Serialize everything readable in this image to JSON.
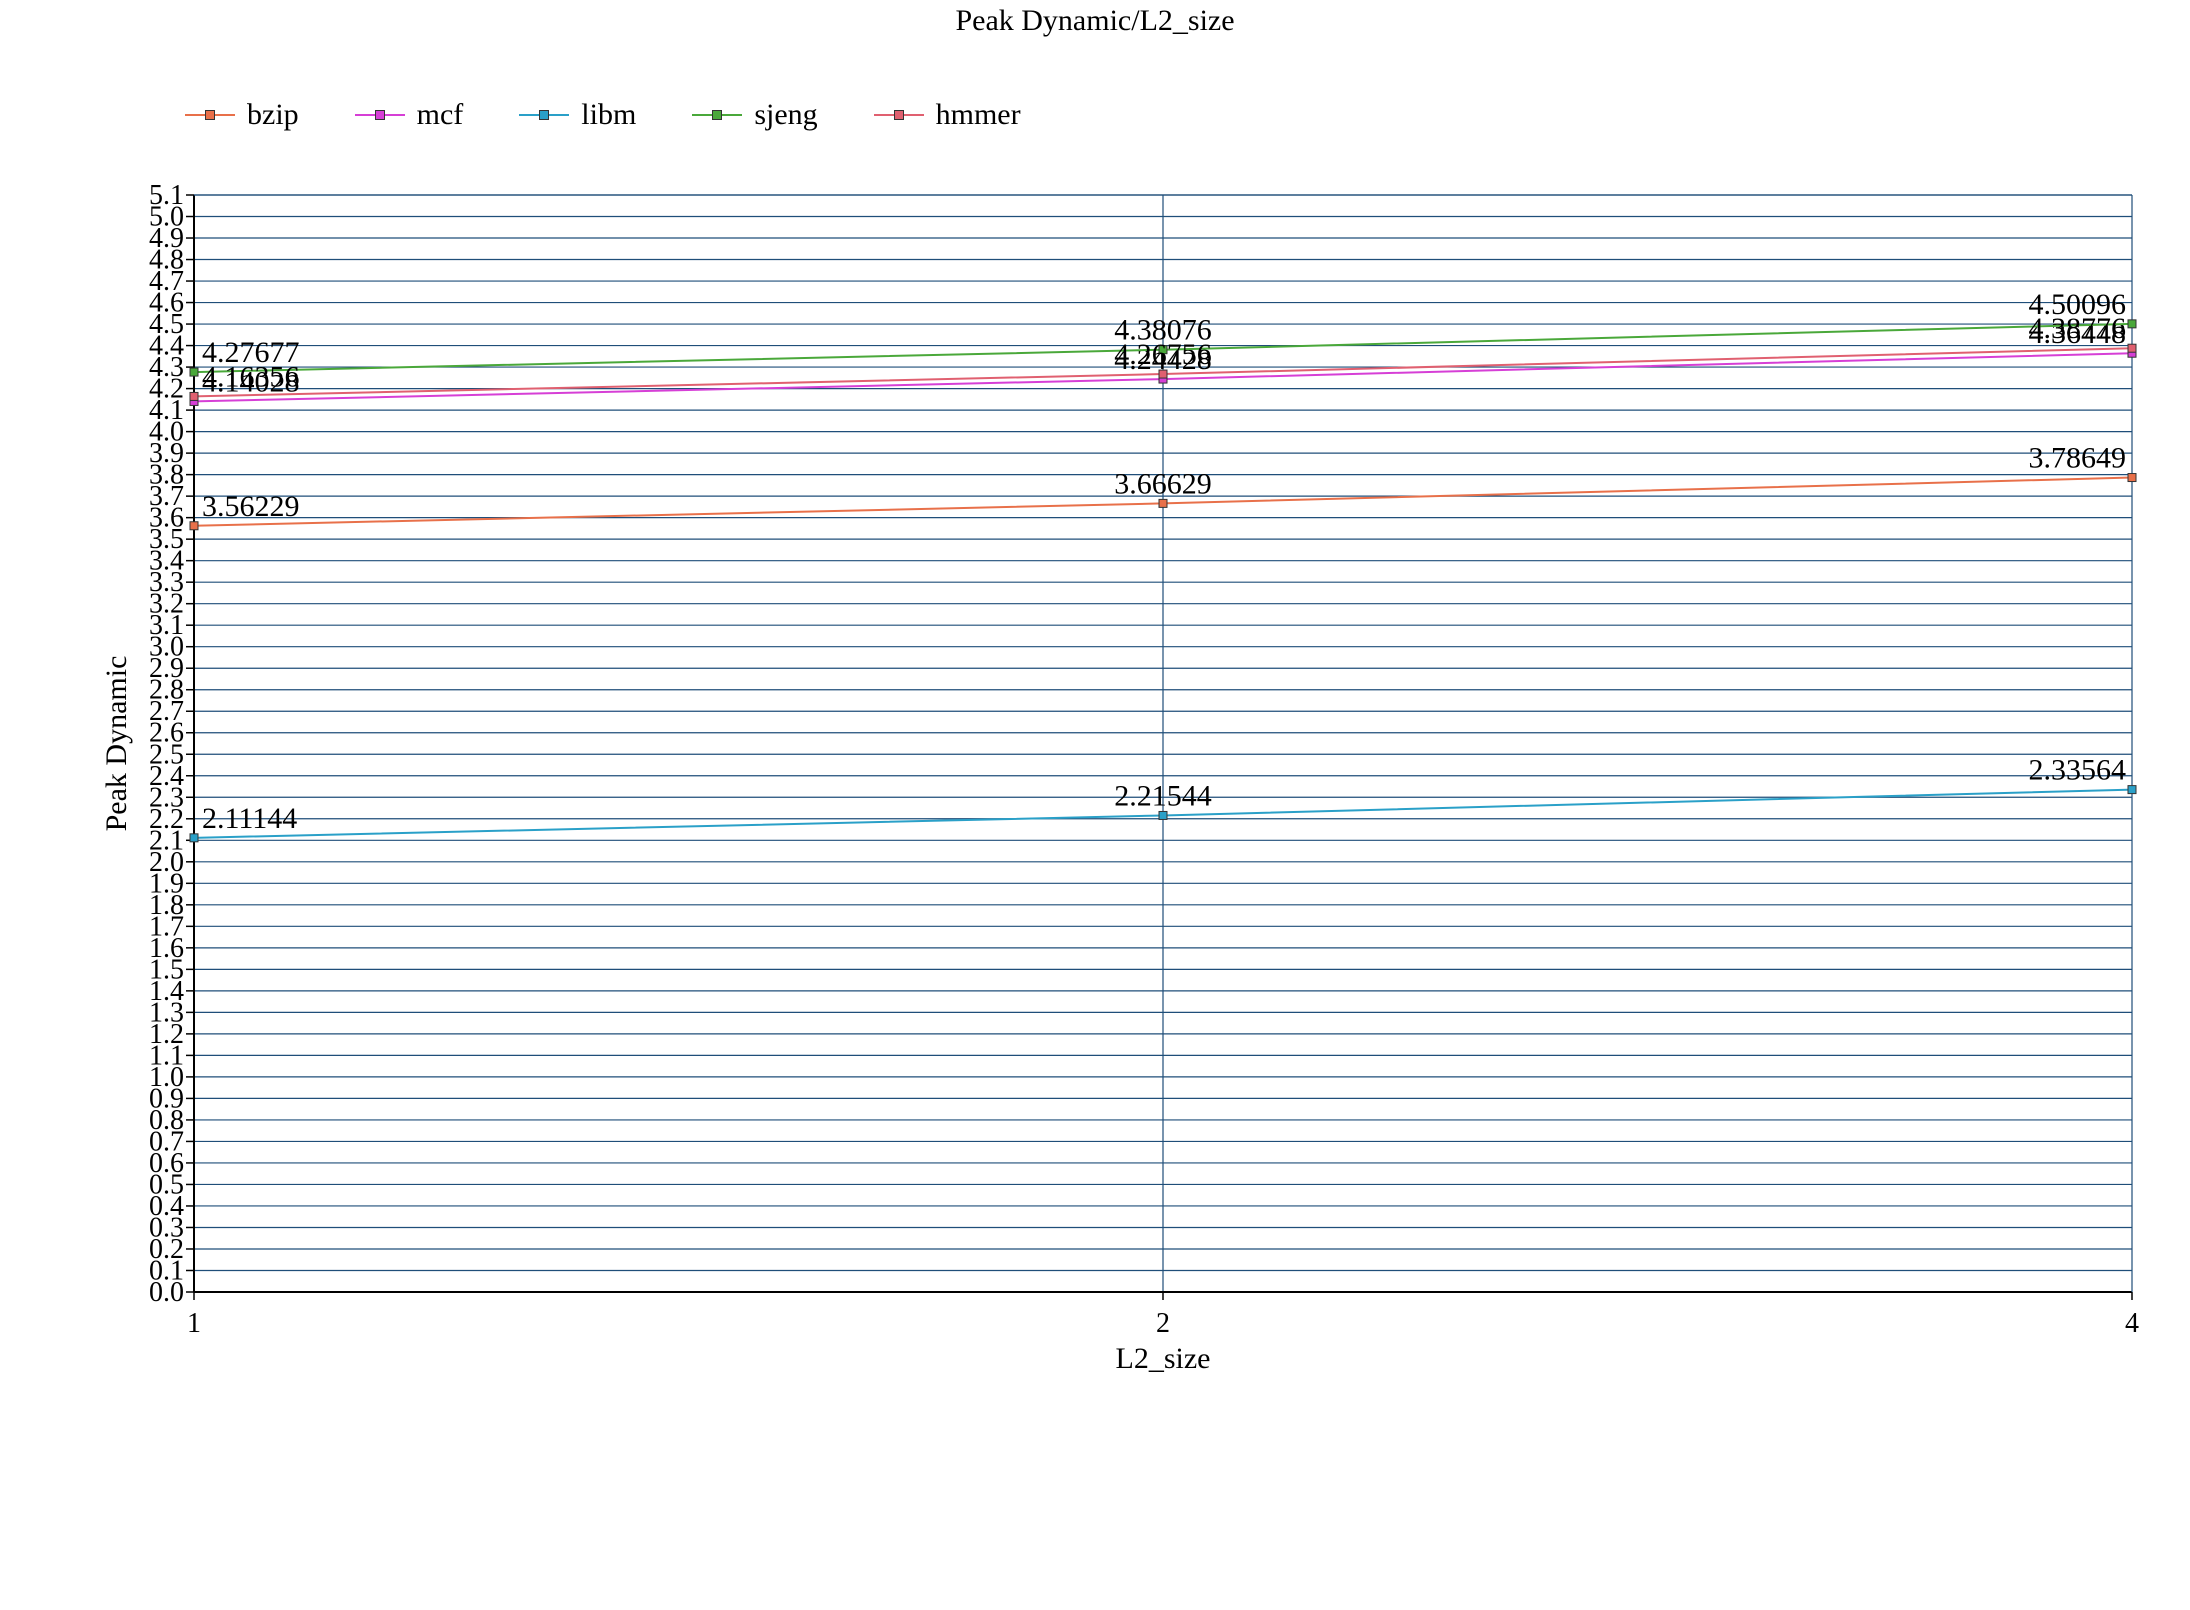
{
  "chart_data": {
    "type": "line",
    "title": "Peak Dynamic/L2_size",
    "xlabel": "L2_size",
    "ylabel": "Peak Dynamic",
    "categories": [
      "1",
      "2",
      "4"
    ],
    "ylim": [
      0.0,
      5.1
    ],
    "ytick_step": 0.1,
    "grid": true,
    "legend_position": "top-left",
    "series": [
      {
        "name": "bzip",
        "color": "#e8704a",
        "values": [
          3.56229,
          3.66629,
          3.78649
        ]
      },
      {
        "name": "mcf",
        "color": "#d63fd6",
        "values": [
          4.14028,
          4.24428,
          4.36448
        ]
      },
      {
        "name": "libm",
        "color": "#2aa0c8",
        "values": [
          2.11144,
          2.21544,
          2.33564
        ]
      },
      {
        "name": "sjeng",
        "color": "#4aa83a",
        "values": [
          4.27677,
          4.38076,
          4.50096
        ]
      },
      {
        "name": "hmmer",
        "color": "#e06070",
        "values": [
          4.16356,
          4.26756,
          4.38776
        ]
      }
    ],
    "data_labels": [
      [
        "3.56229",
        "3.66629",
        "3.78649"
      ],
      [
        "4.14028",
        "4.24428",
        "4.36448"
      ],
      [
        "2.11144",
        "2.21544",
        "2.33564"
      ],
      [
        "4.27677",
        "4.38076",
        "4.50096"
      ],
      [
        "4.16356",
        "4.26756",
        "4.38776"
      ]
    ]
  }
}
